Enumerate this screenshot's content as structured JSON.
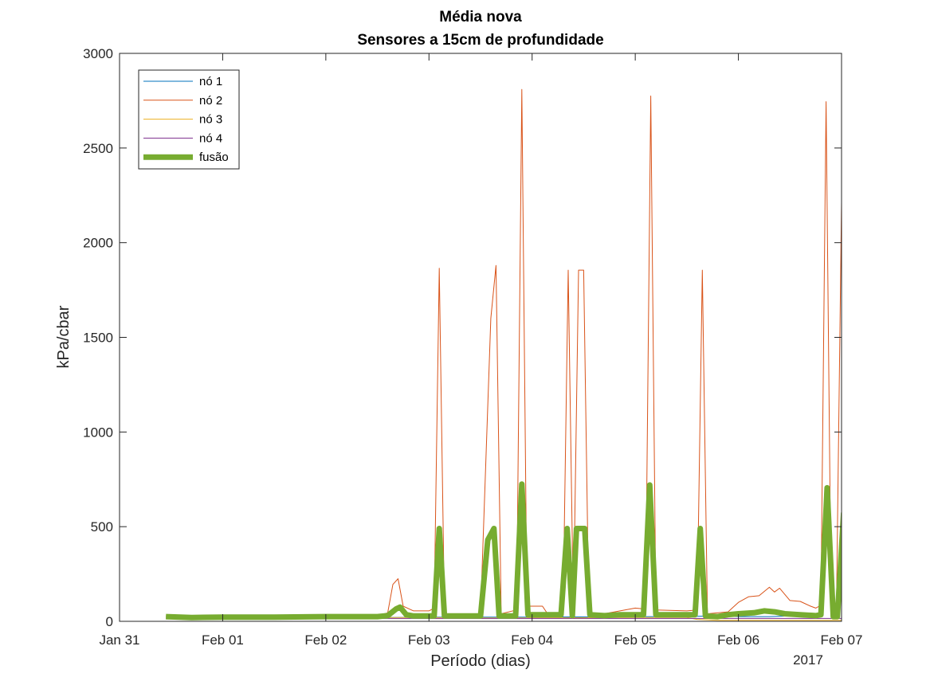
{
  "chart_data": {
    "type": "line",
    "title": "Média nova",
    "subtitle": "Sensores a 15cm de profundidade",
    "xlabel": "Período (dias)",
    "ylabel": "kPa/cbar",
    "x_tick_labels": [
      "Jan 31",
      "Feb 01",
      "Feb 02",
      "Feb 03",
      "Feb 04",
      "Feb 05",
      "Feb 06",
      "Feb 07"
    ],
    "x_year_label": "2017",
    "x_range_days": [
      0,
      7
    ],
    "ylim": [
      0,
      3000
    ],
    "y_ticks": [
      0,
      500,
      1000,
      1500,
      2000,
      2500,
      3000
    ],
    "grid": false,
    "legend_position": "top-left",
    "series": [
      {
        "name": "nó 1",
        "color": "#0072BD",
        "width": 1,
        "points": [
          [
            0.45,
            22
          ],
          [
            1.0,
            20
          ],
          [
            2.0,
            20
          ],
          [
            2.5,
            20
          ],
          [
            3.0,
            22
          ],
          [
            3.5,
            22
          ],
          [
            4.0,
            22
          ],
          [
            5.0,
            25
          ],
          [
            5.5,
            25
          ],
          [
            5.8,
            30
          ],
          [
            6.0,
            25
          ],
          [
            6.3,
            25
          ],
          [
            6.5,
            28
          ],
          [
            6.8,
            28
          ]
        ]
      },
      {
        "name": "nó 2",
        "color": "#D95319",
        "width": 1,
        "points": [
          [
            0.45,
            28
          ],
          [
            1.0,
            27
          ],
          [
            2.0,
            30
          ],
          [
            2.5,
            30
          ],
          [
            2.6,
            45
          ],
          [
            2.65,
            195
          ],
          [
            2.7,
            225
          ],
          [
            2.75,
            80
          ],
          [
            2.85,
            55
          ],
          [
            3.0,
            55
          ],
          [
            3.05,
            70
          ],
          [
            3.1,
            1865
          ],
          [
            3.15,
            40
          ],
          [
            3.5,
            40
          ],
          [
            3.6,
            1600
          ],
          [
            3.65,
            1880
          ],
          [
            3.7,
            40
          ],
          [
            3.85,
            60
          ],
          [
            3.9,
            2810
          ],
          [
            3.95,
            80
          ],
          [
            4.1,
            80
          ],
          [
            4.15,
            40
          ],
          [
            4.3,
            40
          ],
          [
            4.35,
            1855
          ],
          [
            4.4,
            40
          ],
          [
            4.45,
            1855
          ],
          [
            4.5,
            1855
          ],
          [
            4.55,
            40
          ],
          [
            4.7,
            40
          ],
          [
            4.8,
            50
          ],
          [
            5.0,
            70
          ],
          [
            5.1,
            65
          ],
          [
            5.15,
            2775
          ],
          [
            5.2,
            60
          ],
          [
            5.5,
            55
          ],
          [
            5.6,
            60
          ],
          [
            5.65,
            1855
          ],
          [
            5.7,
            40
          ],
          [
            5.9,
            50
          ],
          [
            6.0,
            100
          ],
          [
            6.1,
            130
          ],
          [
            6.2,
            135
          ],
          [
            6.3,
            180
          ],
          [
            6.35,
            155
          ],
          [
            6.4,
            175
          ],
          [
            6.5,
            110
          ],
          [
            6.6,
            105
          ],
          [
            6.7,
            80
          ],
          [
            6.75,
            70
          ],
          [
            6.8,
            85
          ],
          [
            6.85,
            2745
          ],
          [
            6.9,
            20
          ],
          [
            6.95,
            30
          ],
          [
            7.0,
            2215
          ],
          [
            7.05,
            70
          ],
          [
            7.15,
            70
          ],
          [
            7.25,
            110
          ],
          [
            7.3,
            180
          ],
          [
            7.35,
            190
          ]
        ]
      },
      {
        "name": "nó 3",
        "color": "#EDB120",
        "width": 1,
        "points": [
          [
            0.45,
            20
          ],
          [
            1.0,
            19
          ],
          [
            2.0,
            20
          ],
          [
            2.7,
            20
          ],
          [
            3.0,
            20
          ],
          [
            3.5,
            18
          ],
          [
            4.0,
            18
          ],
          [
            5.0,
            20
          ],
          [
            5.5,
            20
          ],
          [
            5.6,
            10
          ],
          [
            5.8,
            5
          ],
          [
            6.0,
            5
          ],
          [
            6.3,
            5
          ],
          [
            6.5,
            5
          ],
          [
            6.8,
            5
          ],
          [
            7.0,
            5
          ],
          [
            7.2,
            5
          ],
          [
            7.35,
            10
          ]
        ]
      },
      {
        "name": "nó 4",
        "color": "#7E2F8E",
        "width": 1,
        "points": [
          [
            0.45,
            15
          ],
          [
            1.0,
            15
          ],
          [
            2.0,
            15
          ],
          [
            3.0,
            15
          ],
          [
            4.0,
            15
          ],
          [
            5.0,
            15
          ],
          [
            6.0,
            15
          ],
          [
            6.5,
            15
          ],
          [
            7.0,
            15
          ],
          [
            7.35,
            15
          ]
        ]
      },
      {
        "name": "fusão",
        "color": "#77AC30",
        "width": 7,
        "points": [
          [
            0.45,
            25
          ],
          [
            0.7,
            20
          ],
          [
            1.0,
            22
          ],
          [
            1.5,
            22
          ],
          [
            2.0,
            25
          ],
          [
            2.5,
            25
          ],
          [
            2.6,
            30
          ],
          [
            2.68,
            65
          ],
          [
            2.72,
            75
          ],
          [
            2.78,
            35
          ],
          [
            2.85,
            28
          ],
          [
            3.05,
            28
          ],
          [
            3.1,
            490
          ],
          [
            3.15,
            28
          ],
          [
            3.5,
            28
          ],
          [
            3.57,
            430
          ],
          [
            3.63,
            490
          ],
          [
            3.68,
            28
          ],
          [
            3.84,
            28
          ],
          [
            3.9,
            725
          ],
          [
            3.96,
            35
          ],
          [
            4.28,
            35
          ],
          [
            4.34,
            490
          ],
          [
            4.39,
            30
          ],
          [
            4.43,
            490
          ],
          [
            4.51,
            490
          ],
          [
            4.56,
            35
          ],
          [
            4.7,
            30
          ],
          [
            4.85,
            35
          ],
          [
            5.08,
            35
          ],
          [
            5.14,
            720
          ],
          [
            5.2,
            35
          ],
          [
            5.58,
            35
          ],
          [
            5.63,
            490
          ],
          [
            5.68,
            28
          ],
          [
            5.8,
            25
          ],
          [
            5.9,
            35
          ],
          [
            6.0,
            40
          ],
          [
            6.15,
            45
          ],
          [
            6.25,
            55
          ],
          [
            6.35,
            50
          ],
          [
            6.45,
            40
          ],
          [
            6.6,
            35
          ],
          [
            6.75,
            30
          ],
          [
            6.8,
            35
          ],
          [
            6.86,
            705
          ],
          [
            6.92,
            25
          ],
          [
            6.96,
            25
          ],
          [
            7.02,
            570
          ],
          [
            7.08,
            25
          ],
          [
            7.15,
            25
          ],
          [
            7.25,
            45
          ],
          [
            7.35,
            55
          ]
        ]
      }
    ]
  }
}
